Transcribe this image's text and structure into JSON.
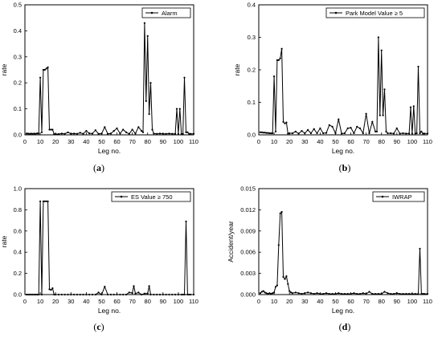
{
  "chart_data": [
    {
      "type": "line",
      "panel_label": "(a)",
      "legend_placement": "top-right",
      "ylabel": "rate",
      "xlabel": "Leg no.",
      "xlim": [
        0,
        110
      ],
      "ylim": [
        0,
        0.5
      ],
      "xticks": [
        "0",
        "10",
        "20",
        "30",
        "40",
        "50",
        "60",
        "70",
        "80",
        "90",
        "100",
        "110"
      ],
      "yticks": [
        "0.0",
        "0.1",
        "0.2",
        "0.3",
        "0.4",
        "0.5"
      ],
      "series": [
        {
          "name": "Alarm",
          "x": [
            1,
            2,
            3,
            4,
            5,
            6,
            7,
            8,
            9,
            10,
            11,
            12,
            13,
            14,
            15,
            16,
            17,
            18,
            19,
            20,
            22,
            24,
            26,
            28,
            30,
            32,
            34,
            36,
            38,
            40,
            42,
            44,
            46,
            48,
            50,
            52,
            54,
            56,
            58,
            60,
            62,
            64,
            66,
            68,
            70,
            72,
            74,
            76,
            77,
            78,
            79,
            80,
            81,
            82,
            83,
            84,
            86,
            88,
            90,
            92,
            94,
            96,
            98,
            99,
            100,
            101,
            102,
            103,
            104,
            105,
            106,
            107,
            108,
            110
          ],
          "y": [
            0.005,
            0.005,
            0.004,
            0.005,
            0.004,
            0.005,
            0.004,
            0.006,
            0.005,
            0.22,
            0.01,
            0.25,
            0.25,
            0.255,
            0.26,
            0.02,
            0.02,
            0.02,
            0.003,
            0.003,
            0.003,
            0.005,
            0.004,
            0.01,
            0.004,
            0.005,
            0.004,
            0.008,
            0.004,
            0.015,
            0.006,
            0.005,
            0.018,
            0.004,
            0.005,
            0.03,
            0.004,
            0.005,
            0.015,
            0.025,
            0.005,
            0.02,
            0.01,
            0.004,
            0.02,
            0.005,
            0.03,
            0.015,
            0.01,
            0.43,
            0.13,
            0.38,
            0.08,
            0.2,
            0.02,
            0.005,
            0.004,
            0.005,
            0.004,
            0.004,
            0.005,
            0.004,
            0.004,
            0.1,
            0.004,
            0.1,
            0.003,
            0.004,
            0.22,
            0.01,
            0.01,
            0.004,
            0.004,
            0.004
          ]
        }
      ]
    },
    {
      "type": "line",
      "panel_label": "(b)",
      "legend_placement": "top-right",
      "ylabel": "rate",
      "xlabel": "Leg no.",
      "xlim": [
        0,
        110
      ],
      "ylim": [
        0,
        0.4
      ],
      "xticks": [
        "0",
        "10",
        "20",
        "30",
        "40",
        "50",
        "60",
        "70",
        "80",
        "90",
        "100",
        "110"
      ],
      "yticks": [
        "0.0",
        "0.1",
        "0.2",
        "0.3",
        "0.4"
      ],
      "series": [
        {
          "name": "Park Model Value ≥ 5",
          "x": [
            1,
            2,
            3,
            4,
            5,
            6,
            7,
            8,
            9,
            10,
            11,
            12,
            13,
            14,
            15,
            16,
            17,
            18,
            19,
            20,
            22,
            24,
            26,
            28,
            30,
            32,
            34,
            36,
            38,
            40,
            42,
            44,
            46,
            48,
            50,
            52,
            54,
            56,
            58,
            60,
            62,
            64,
            66,
            68,
            70,
            72,
            74,
            76,
            77,
            78,
            79,
            80,
            81,
            82,
            83,
            84,
            86,
            88,
            90,
            92,
            94,
            96,
            98,
            99,
            100,
            101,
            102,
            103,
            104,
            105,
            106,
            107,
            108,
            110
          ],
          "y": [
            0.008,
            0.008,
            0.007,
            0.007,
            0.006,
            0.006,
            0.005,
            0.005,
            0.005,
            0.18,
            0.01,
            0.23,
            0.23,
            0.235,
            0.265,
            0.04,
            0.035,
            0.038,
            0.004,
            0.005,
            0.005,
            0.01,
            0.004,
            0.012,
            0.005,
            0.015,
            0.005,
            0.018,
            0.005,
            0.02,
            0.005,
            0.006,
            0.03,
            0.025,
            0.005,
            0.048,
            0.004,
            0.005,
            0.02,
            0.022,
            0.005,
            0.025,
            0.02,
            0.005,
            0.065,
            0.005,
            0.04,
            0.01,
            0.01,
            0.3,
            0.06,
            0.26,
            0.06,
            0.14,
            0.01,
            0.005,
            0.005,
            0.004,
            0.02,
            0.004,
            0.005,
            0.004,
            0.004,
            0.085,
            0.004,
            0.088,
            0.004,
            0.005,
            0.21,
            0.005,
            0.01,
            0.004,
            0.004,
            0.004
          ]
        }
      ]
    },
    {
      "type": "line",
      "panel_label": "(c)",
      "legend_placement": "top-right",
      "ylabel": "rate",
      "xlabel": "Leg no.",
      "xlim": [
        0,
        110
      ],
      "ylim": [
        0,
        1.0
      ],
      "xticks": [
        "0",
        "10",
        "20",
        "30",
        "40",
        "50",
        "60",
        "70",
        "80",
        "90",
        "100",
        "110"
      ],
      "yticks": [
        "0.0",
        "0.2",
        "0.4",
        "0.6",
        "0.8",
        "1.0"
      ],
      "series": [
        {
          "name": "ES Value ≥ 750",
          "x": [
            1,
            2,
            3,
            4,
            5,
            6,
            7,
            8,
            9,
            10,
            11,
            12,
            13,
            14,
            15,
            16,
            17,
            18,
            19,
            20,
            22,
            24,
            26,
            28,
            30,
            32,
            34,
            36,
            38,
            40,
            42,
            44,
            46,
            48,
            50,
            52,
            54,
            56,
            58,
            60,
            62,
            64,
            66,
            68,
            70,
            71,
            72,
            74,
            76,
            78,
            80,
            81,
            82,
            84,
            86,
            88,
            90,
            92,
            94,
            96,
            98,
            100,
            102,
            103,
            104,
            105,
            106,
            107,
            108,
            110
          ],
          "y": [
            0,
            0,
            0,
            0,
            0,
            0,
            0,
            0,
            0,
            0.88,
            0,
            0.88,
            0.88,
            0.88,
            0.88,
            0.05,
            0.045,
            0.06,
            0,
            0,
            0,
            0,
            0,
            0,
            0,
            0,
            0,
            0,
            0,
            0,
            0,
            0,
            0,
            0.02,
            0,
            0.075,
            0,
            0,
            0,
            0,
            0,
            0,
            0,
            0.02,
            0.015,
            0.08,
            0.01,
            0.02,
            0,
            0.01,
            0.01,
            0.08,
            0,
            0,
            0,
            0,
            0,
            0,
            0,
            0,
            0,
            0,
            0,
            0,
            0,
            0.69,
            0,
            0,
            0,
            0
          ]
        }
      ]
    },
    {
      "type": "line",
      "panel_label": "(d)",
      "legend_placement": "top-right",
      "ylabel": "Accident/year",
      "xlabel": "Leg no.",
      "xlim": [
        0,
        110
      ],
      "ylim": [
        0,
        0.015
      ],
      "xticks": [
        "0",
        "10",
        "20",
        "30",
        "40",
        "50",
        "60",
        "70",
        "80",
        "90",
        "100",
        "110"
      ],
      "yticks": [
        "0.000",
        "0.003",
        "0.006",
        "0.009",
        "0.012",
        "0.015"
      ],
      "series": [
        {
          "name": "IWRAP",
          "x": [
            1,
            2,
            3,
            4,
            5,
            6,
            7,
            8,
            9,
            10,
            11,
            12,
            13,
            14,
            15,
            16,
            17,
            18,
            19,
            20,
            21,
            22,
            24,
            26,
            28,
            30,
            32,
            34,
            36,
            38,
            40,
            42,
            44,
            46,
            48,
            50,
            52,
            54,
            56,
            58,
            60,
            62,
            64,
            66,
            68,
            70,
            72,
            74,
            76,
            78,
            80,
            82,
            84,
            86,
            88,
            90,
            92,
            94,
            96,
            98,
            100,
            102,
            104,
            105,
            106,
            107,
            108,
            110
          ],
          "y": [
            0.0002,
            0.0004,
            0.0005,
            0.0003,
            0.0002,
            0.0001,
            0.0002,
            0.0001,
            0.0002,
            0.0003,
            0.0011,
            0.0013,
            0.007,
            0.0115,
            0.0117,
            0.0025,
            0.0022,
            0.0026,
            0.0015,
            0.0005,
            0.0003,
            0.0002,
            0.0003,
            0.0002,
            0.0001,
            0.0002,
            0.0003,
            0.0002,
            0.0001,
            0.0002,
            0.0001,
            0.0001,
            0.0002,
            0.0001,
            0.0001,
            0.0001,
            0.0002,
            0.0001,
            0.0001,
            0.0001,
            0.0001,
            0.0002,
            0.0001,
            0.0001,
            0.0002,
            0.0001,
            0.0004,
            0.0001,
            0.0001,
            0.0001,
            0.0001,
            0.0004,
            0.0002,
            0.0001,
            0.0001,
            0.0002,
            0.0001,
            0.0001,
            0.0001,
            0.0001,
            0.0001,
            0.0001,
            0.0001,
            0.0065,
            0.0001,
            0.0001,
            0.0001,
            0.0001
          ]
        }
      ]
    }
  ]
}
